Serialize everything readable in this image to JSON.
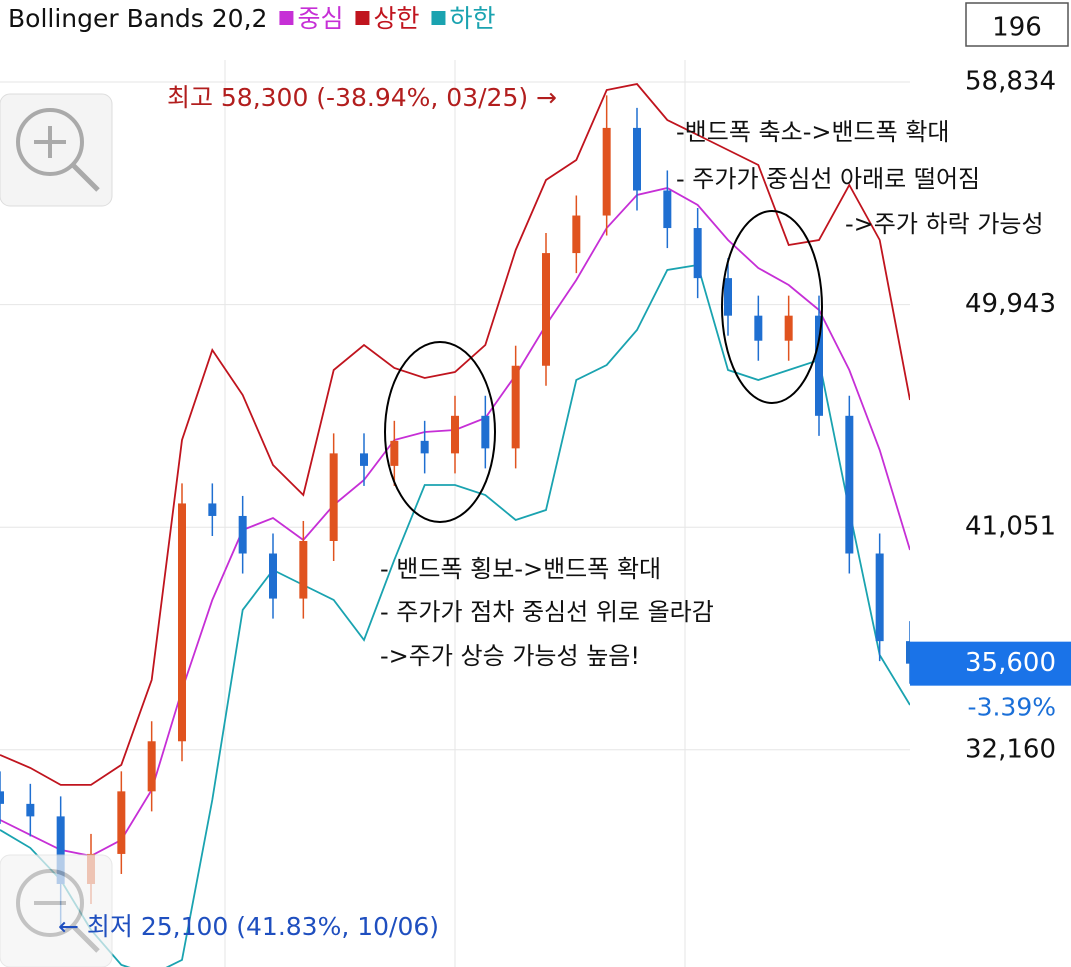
{
  "chart_data": {
    "type": "candlestick",
    "title": "Bollinger Bands 20,2",
    "x": [
      0,
      5,
      10,
      15,
      20,
      25,
      30,
      35,
      40,
      45,
      50,
      55,
      60,
      65,
      70,
      75,
      80,
      85,
      90,
      95,
      100,
      105,
      110,
      115,
      120,
      125,
      130,
      135,
      140,
      145,
      150
    ],
    "xlim": [
      0,
      150
    ],
    "open": [
      30500,
      30000,
      29500,
      26800,
      28000,
      30500,
      32500,
      42000,
      41500,
      40000,
      38200,
      40500,
      44000,
      43500,
      44500,
      44000,
      45500,
      44200,
      47500,
      52000,
      53500,
      57000,
      54500,
      53000,
      51000,
      49500,
      48500,
      49500,
      45500,
      40000,
      36500
    ],
    "high": [
      31300,
      30800,
      30300,
      28800,
      31300,
      33300,
      42800,
      42800,
      42300,
      40800,
      41300,
      44800,
      44800,
      45300,
      45300,
      46300,
      46300,
      48300,
      52800,
      54300,
      58300,
      57800,
      55300,
      53800,
      51800,
      50300,
      50300,
      50300,
      46300,
      40800,
      37300
    ],
    "low": [
      29200,
      28700,
      25100,
      26000,
      27200,
      29700,
      31700,
      40700,
      39200,
      37400,
      37400,
      39700,
      42700,
      42700,
      43200,
      43200,
      43400,
      43400,
      46700,
      51200,
      52700,
      53700,
      52200,
      50200,
      48700,
      47700,
      47700,
      44700,
      39200,
      35700,
      34800
    ],
    "close": [
      30000,
      29500,
      26800,
      28000,
      30500,
      32500,
      42000,
      41500,
      40000,
      38200,
      40500,
      44000,
      43500,
      44500,
      44000,
      45500,
      44200,
      47500,
      52000,
      53500,
      57000,
      54500,
      53000,
      51000,
      49500,
      48500,
      49500,
      45500,
      40000,
      36500,
      35600
    ],
    "up_color": "#e0531f",
    "down_color": "#1f6fd1",
    "series": [
      {
        "name": "중심",
        "color": "#c62fd6",
        "values": [
          29358,
          28759,
          28160,
          27920,
          28559,
          30556,
          34550,
          38145,
          40941,
          41420,
          40541,
          41939,
          42938,
          44535,
          44855,
          44935,
          45414,
          47132,
          49129,
          50926,
          53003,
          54321,
          54600,
          53921,
          52523,
          51405,
          50726,
          49728,
          47331,
          44136,
          40142
        ]
      },
      {
        "name": "상한",
        "color": "#c0141e",
        "values": [
          31954,
          31435,
          30756,
          30756,
          31555,
          34950,
          44535,
          48130,
          46333,
          43537,
          42339,
          47331,
          48330,
          47411,
          47012,
          47251,
          48330,
          52124,
          54920,
          55719,
          58514,
          58754,
          57316,
          56717,
          56118,
          55519,
          52324,
          52523,
          54720,
          52523,
          46133
        ]
      },
      {
        "name": "하한",
        "color": "#1aa3b0",
        "values": [
          28959,
          28240,
          26962,
          24965,
          23567,
          23168,
          23767,
          30157,
          37746,
          39343,
          38744,
          38145,
          36547,
          39743,
          42738,
          42738,
          42339,
          41340,
          41740,
          46932,
          47531,
          48929,
          51325,
          51525,
          47331,
          46932,
          47331,
          47731,
          41740,
          35948,
          33951
        ]
      }
    ],
    "ylim": [
      23484,
      62109
    ],
    "yticks": [
      {
        "value": 58834,
        "label": "58,834"
      },
      {
        "value": 49943,
        "label": "49,943"
      },
      {
        "value": 41051,
        "label": "41,051"
      },
      {
        "value": 32160,
        "label": "32,160"
      }
    ],
    "grid": true,
    "period": "196",
    "last": {
      "value": 35600,
      "label": "35,600"
    },
    "change": "-3.39%",
    "high_note": "최고 58,300 (-38.94%, 03/25) →",
    "low_note": "← 최저 25,100 (41.83%, 10/06)",
    "notes": [
      [
        "- 밴드폭 횡보->밴드폭 확대",
        "- 주가가 점차 중심선 위로 올라감",
        "->주가 상승 가능성 높음!"
      ],
      [
        "-밴드폭 축소->밴드폭 확대",
        "- 주가가 중심선 아래로 떨어짐",
        "->주가 하락 가능성"
      ]
    ]
  }
}
